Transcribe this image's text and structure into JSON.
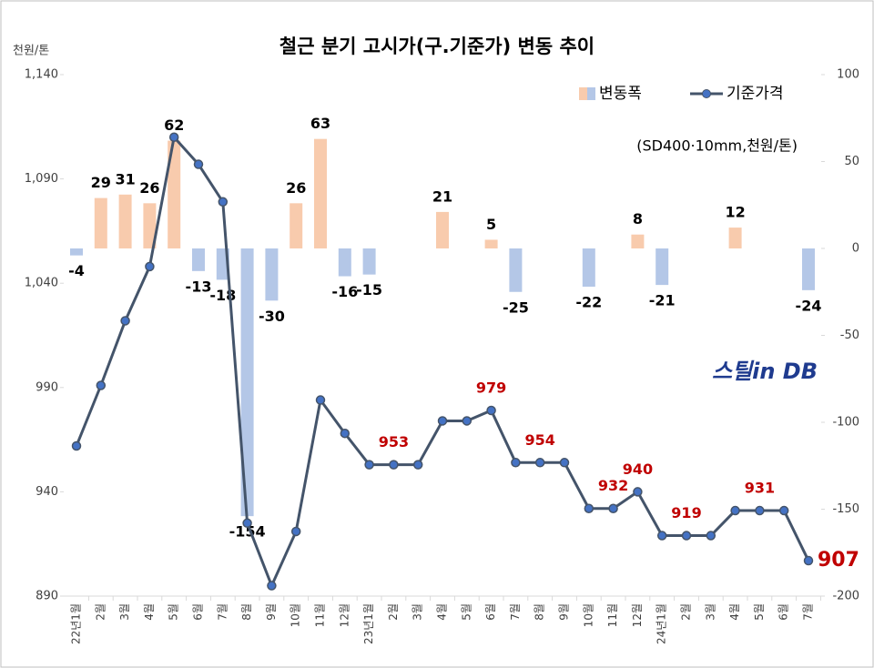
{
  "chart_data": {
    "type": "combo",
    "title": "철근 분기 고시가(구.기준가) 변동 추이",
    "y_label": "천원/톤",
    "annotation": "(SD400·10mm,천원/톤)",
    "logo": "스틸in DB",
    "categories": [
      "22년1월",
      "2월",
      "3월",
      "4월",
      "5월",
      "6월",
      "7월",
      "8월",
      "9월",
      "10월",
      "11월",
      "12월",
      "23년1월",
      "2월",
      "3월",
      "4월",
      "5월",
      "6월",
      "7월",
      "8월",
      "9월",
      "10월",
      "11월",
      "12월",
      "24년1월",
      "2월",
      "3월",
      "4월",
      "5월",
      "6월",
      "7월"
    ],
    "series": [
      {
        "name": "변동폭",
        "type": "bar",
        "axis": "y2",
        "color": "#f8cbad",
        "negative_color": "#b4c7e7",
        "values": [
          -4,
          29,
          31,
          26,
          62,
          -13,
          -18,
          -154,
          -30,
          26,
          63,
          -16,
          -15,
          null,
          null,
          21,
          null,
          5,
          -25,
          null,
          null,
          -22,
          null,
          8,
          -21,
          null,
          null,
          12,
          null,
          null,
          -24
        ]
      },
      {
        "name": "기준가격",
        "type": "line",
        "color": "#44546a",
        "marker_color": "#4472c4",
        "label_color": "#c00000",
        "values": [
          962,
          991,
          1022,
          1048,
          1110,
          1097,
          1079,
          925,
          895,
          921,
          984,
          968,
          953,
          953,
          953,
          974,
          974,
          979,
          954,
          954,
          954,
          932,
          932,
          940,
          919,
          919,
          919,
          931,
          931,
          931,
          907
        ],
        "value_labels": [
          null,
          null,
          null,
          null,
          null,
          null,
          null,
          null,
          null,
          null,
          null,
          null,
          null,
          "953",
          null,
          null,
          null,
          "979",
          null,
          "954",
          null,
          null,
          "932",
          "940",
          null,
          "919",
          null,
          null,
          "931",
          null,
          "907"
        ]
      }
    ],
    "ylim": [
      890,
      1140
    ],
    "yticks": [
      {
        "value": 1140,
        "label": "1,140"
      },
      {
        "value": 1090,
        "label": "1,090"
      },
      {
        "value": 1040,
        "label": "1,040"
      },
      990,
      940,
      890
    ],
    "y2lim": [
      -200,
      100
    ],
    "y2ticks": [
      100,
      50,
      0,
      -50,
      -100,
      -150,
      -200
    ],
    "legend": "top-right"
  }
}
